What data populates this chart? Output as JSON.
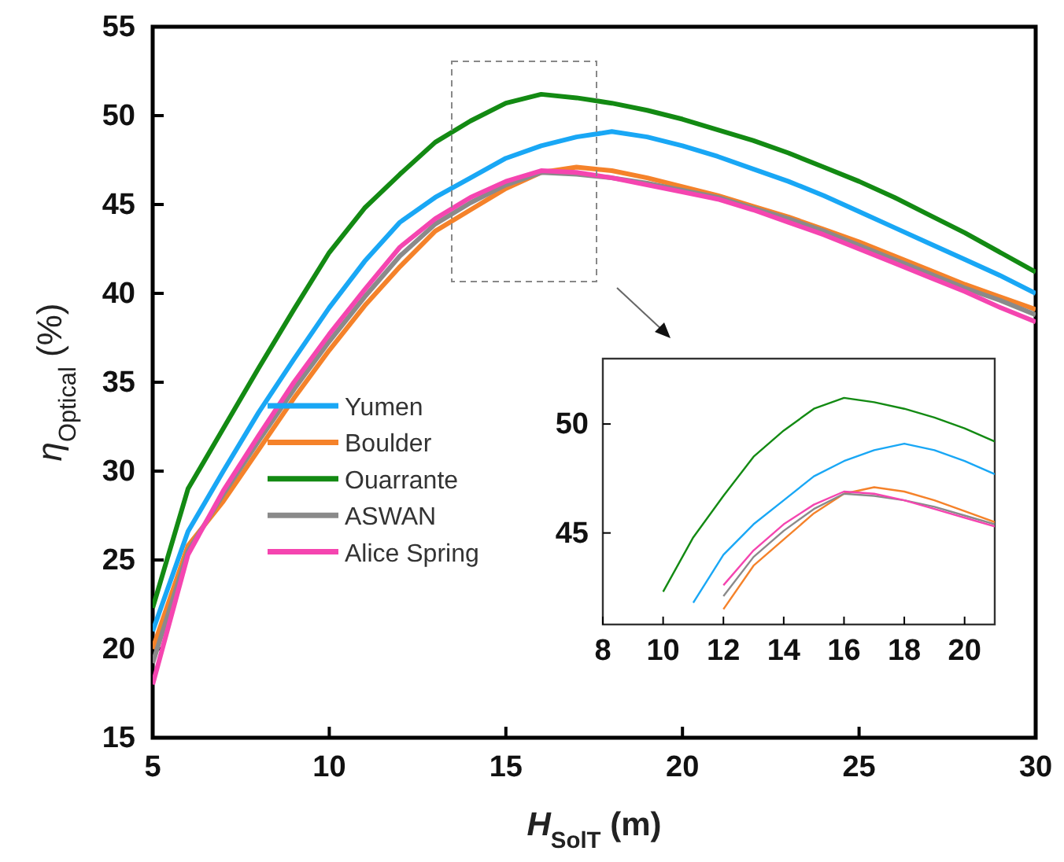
{
  "chart_data": [
    {
      "type": "line",
      "xlabel": "H$_{SolT}$ (m)",
      "ylabel": "η$_{Optical}$ (%)",
      "x": [
        5,
        6,
        7,
        8,
        9,
        10,
        11,
        12,
        13,
        14,
        15,
        16,
        17,
        18,
        19,
        20,
        21,
        22,
        23,
        24,
        25,
        26,
        27,
        28,
        29,
        30
      ],
      "xlim": [
        5,
        30
      ],
      "xticks": [
        5,
        10,
        15,
        20,
        25,
        30
      ],
      "ylim": [
        15,
        55
      ],
      "yticks": [
        15,
        20,
        25,
        30,
        35,
        40,
        45,
        50,
        55
      ],
      "legend": "left",
      "grid": false,
      "series": [
        {
          "name": "Yumen",
          "color": "#19a7f5",
          "values": [
            21,
            26.6,
            30,
            33.3,
            36.3,
            39.2,
            41.8,
            44.0,
            45.4,
            46.5,
            47.6,
            48.3,
            48.8,
            49.1,
            48.8,
            48.3,
            47.7,
            47.0,
            46.3,
            45.5,
            44.6,
            43.7,
            42.8,
            41.9,
            41.0,
            40.0
          ]
        },
        {
          "name": "Boulder",
          "color": "#f5822a",
          "values": [
            20,
            25.8,
            28.3,
            31.2,
            34.1,
            36.8,
            39.3,
            41.5,
            43.5,
            44.7,
            45.9,
            46.8,
            47.1,
            46.9,
            46.5,
            46.0,
            45.5,
            44.9,
            44.3,
            43.6,
            42.9,
            42.1,
            41.3,
            40.5,
            39.8,
            39.1
          ]
        },
        {
          "name": "Ouarrante",
          "color": "#138a13",
          "values": [
            22.3,
            29,
            32.4,
            35.8,
            39.1,
            42.3,
            44.8,
            46.7,
            48.5,
            49.7,
            50.7,
            51.2,
            51.0,
            50.7,
            50.3,
            49.8,
            49.2,
            48.6,
            47.9,
            47.1,
            46.3,
            45.4,
            44.4,
            43.4,
            42.3,
            41.2
          ]
        },
        {
          "name": "ASWAN",
          "color": "#8a8a8a",
          "values": [
            19.2,
            25.5,
            28.7,
            31.7,
            34.6,
            37.3,
            39.8,
            42.1,
            43.9,
            45.1,
            46.1,
            46.8,
            46.7,
            46.5,
            46.2,
            45.8,
            45.4,
            44.8,
            44.2,
            43.5,
            42.7,
            41.9,
            41.1,
            40.3,
            39.6,
            38.8
          ]
        },
        {
          "name": "Alice Spring",
          "color": "#f545b0",
          "values": [
            18,
            25.3,
            28.9,
            32,
            35,
            37.7,
            40.2,
            42.6,
            44.2,
            45.4,
            46.3,
            46.9,
            46.8,
            46.5,
            46.1,
            45.7,
            45.3,
            44.7,
            44.0,
            43.3,
            42.5,
            41.7,
            40.9,
            40.1,
            39.2,
            38.4
          ]
        }
      ]
    },
    {
      "type": "line",
      "xlim": [
        8,
        21
      ],
      "xticks": [
        8,
        10,
        12,
        14,
        16,
        18,
        20
      ],
      "ylim": [
        40.8,
        53
      ],
      "yticks": [
        45,
        50
      ],
      "grid": false,
      "series": [
        {
          "color": "#19a7f5",
          "x": [
            11,
            12,
            13,
            14,
            15,
            16,
            17,
            18,
            19,
            20,
            21
          ],
          "values": [
            41.8,
            44.0,
            45.4,
            46.5,
            47.6,
            48.3,
            48.8,
            49.1,
            48.8,
            48.3,
            47.7
          ]
        },
        {
          "color": "#f5822a",
          "x": [
            12,
            13,
            14,
            15,
            16,
            17,
            18,
            19,
            20,
            21
          ],
          "values": [
            41.5,
            43.5,
            44.7,
            45.9,
            46.8,
            47.1,
            46.9,
            46.5,
            46.0,
            45.5
          ]
        },
        {
          "color": "#138a13",
          "x": [
            10,
            11,
            12,
            13,
            14,
            15,
            16,
            17,
            18,
            19,
            20,
            21
          ],
          "values": [
            42.3,
            44.8,
            46.7,
            48.5,
            49.7,
            50.7,
            51.2,
            51.0,
            50.7,
            50.3,
            49.8,
            49.2
          ]
        },
        {
          "color": "#8a8a8a",
          "x": [
            12,
            13,
            14,
            15,
            16,
            17,
            18,
            19,
            20,
            21
          ],
          "values": [
            42.1,
            43.9,
            45.1,
            46.1,
            46.8,
            46.7,
            46.5,
            46.2,
            45.8,
            45.4
          ]
        },
        {
          "color": "#f545b0",
          "x": [
            12,
            13,
            14,
            15,
            16,
            17,
            18,
            19,
            20,
            21
          ],
          "values": [
            42.6,
            44.2,
            45.4,
            46.3,
            46.9,
            46.8,
            46.5,
            46.1,
            45.7,
            45.3
          ]
        }
      ]
    }
  ]
}
